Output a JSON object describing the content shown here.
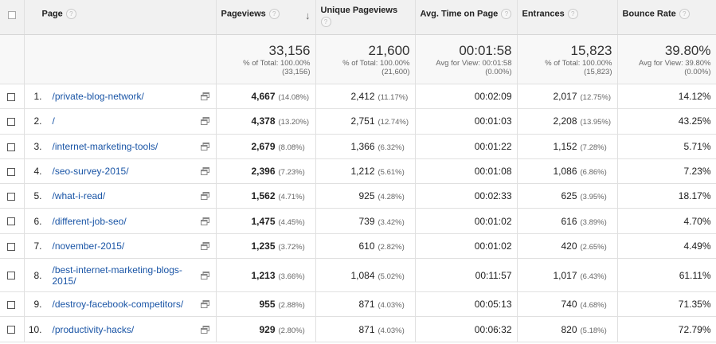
{
  "header": {
    "page": "Page",
    "pageviews": "Pageviews",
    "unique_pageviews": "Unique Pageviews",
    "avg_time": "Avg. Time on Page",
    "entrances": "Entrances",
    "bounce_rate": "Bounce Rate",
    "help_glyph": "?",
    "sort_glyph": "↓"
  },
  "totals": {
    "pageviews": {
      "value": "33,156",
      "line1": "% of Total: 100.00%",
      "line2": "(33,156)"
    },
    "unique_pageviews": {
      "value": "21,600",
      "line1": "% of Total: 100.00%",
      "line2": "(21,600)"
    },
    "avg_time": {
      "value": "00:01:58",
      "line1": "Avg for View: 00:01:58",
      "line2": "(0.00%)"
    },
    "entrances": {
      "value": "15,823",
      "line1": "% of Total: 100.00%",
      "line2": "(15,823)"
    },
    "bounce_rate": {
      "value": "39.80%",
      "line1": "Avg for View: 39.80%",
      "line2": "(0.00%)"
    }
  },
  "rows": [
    {
      "idx": "1.",
      "page": "/private-blog-network/",
      "pv": "4,667",
      "pv_pct": "(14.08%)",
      "upv": "2,412",
      "upv_pct": "(11.17%)",
      "time": "00:02:09",
      "ent": "2,017",
      "ent_pct": "(12.75%)",
      "bounce": "14.12%"
    },
    {
      "idx": "2.",
      "page": "/",
      "pv": "4,378",
      "pv_pct": "(13.20%)",
      "upv": "2,751",
      "upv_pct": "(12.74%)",
      "time": "00:01:03",
      "ent": "2,208",
      "ent_pct": "(13.95%)",
      "bounce": "43.25%"
    },
    {
      "idx": "3.",
      "page": "/internet-marketing-tools/",
      "pv": "2,679",
      "pv_pct": "(8.08%)",
      "upv": "1,366",
      "upv_pct": "(6.32%)",
      "time": "00:01:22",
      "ent": "1,152",
      "ent_pct": "(7.28%)",
      "bounce": "5.71%"
    },
    {
      "idx": "4.",
      "page": "/seo-survey-2015/",
      "pv": "2,396",
      "pv_pct": "(7.23%)",
      "upv": "1,212",
      "upv_pct": "(5.61%)",
      "time": "00:01:08",
      "ent": "1,086",
      "ent_pct": "(6.86%)",
      "bounce": "7.23%"
    },
    {
      "idx": "5.",
      "page": "/what-i-read/",
      "pv": "1,562",
      "pv_pct": "(4.71%)",
      "upv": "925",
      "upv_pct": "(4.28%)",
      "time": "00:02:33",
      "ent": "625",
      "ent_pct": "(3.95%)",
      "bounce": "18.17%"
    },
    {
      "idx": "6.",
      "page": "/different-job-seo/",
      "pv": "1,475",
      "pv_pct": "(4.45%)",
      "upv": "739",
      "upv_pct": "(3.42%)",
      "time": "00:01:02",
      "ent": "616",
      "ent_pct": "(3.89%)",
      "bounce": "4.70%"
    },
    {
      "idx": "7.",
      "page": "/november-2015/",
      "pv": "1,235",
      "pv_pct": "(3.72%)",
      "upv": "610",
      "upv_pct": "(2.82%)",
      "time": "00:01:02",
      "ent": "420",
      "ent_pct": "(2.65%)",
      "bounce": "4.49%"
    },
    {
      "idx": "8.",
      "page": "/best-internet-marketing-blogs-2015/",
      "pv": "1,213",
      "pv_pct": "(3.66%)",
      "upv": "1,084",
      "upv_pct": "(5.02%)",
      "time": "00:11:57",
      "ent": "1,017",
      "ent_pct": "(6.43%)",
      "bounce": "61.11%"
    },
    {
      "idx": "9.",
      "page": "/destroy-facebook-competitors/",
      "pv": "955",
      "pv_pct": "(2.88%)",
      "upv": "871",
      "upv_pct": "(4.03%)",
      "time": "00:05:13",
      "ent": "740",
      "ent_pct": "(4.68%)",
      "bounce": "71.35%"
    },
    {
      "idx": "10.",
      "page": "/productivity-hacks/",
      "pv": "929",
      "pv_pct": "(2.80%)",
      "upv": "871",
      "upv_pct": "(4.03%)",
      "time": "00:06:32",
      "ent": "820",
      "ent_pct": "(5.18%)",
      "bounce": "72.79%"
    }
  ],
  "colors": {
    "link": "#1a55a6",
    "header_bg": "#f1f1f1",
    "totals_bg": "#f8f8f8"
  },
  "icons": {
    "row_action": "open-in-new-window-icon",
    "header_help": "help-icon"
  }
}
